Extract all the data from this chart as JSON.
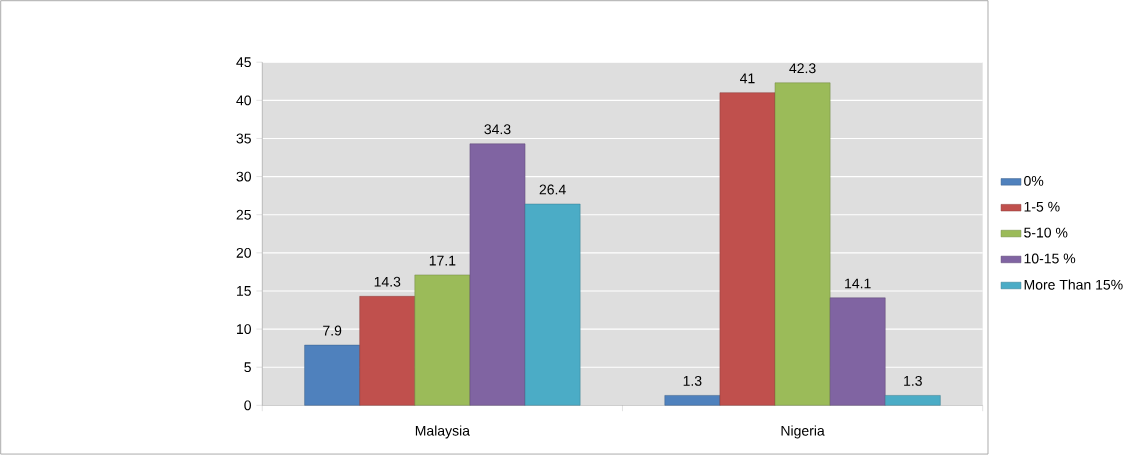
{
  "chart_data": {
    "type": "bar",
    "categories": [
      "Malaysia",
      "Nigeria"
    ],
    "series": [
      {
        "name": "0%",
        "color": "#4f81bd",
        "values": [
          7.9,
          1.3
        ]
      },
      {
        "name": "1-5 %",
        "color": "#c0504d",
        "values": [
          14.3,
          41
        ]
      },
      {
        "name": "5-10 %",
        "color": "#9bbb59",
        "values": [
          17.1,
          42.3
        ]
      },
      {
        "name": "10-15 %",
        "color": "#8064a2",
        "values": [
          34.3,
          14.1
        ]
      },
      {
        "name": "More Than 15%",
        "color": "#4bacc6",
        "values": [
          26.4,
          1.3
        ]
      }
    ],
    "ylim": [
      0,
      45
    ],
    "yticks": [
      0,
      5,
      10,
      15,
      20,
      25,
      30,
      35,
      40,
      45
    ],
    "grid": "y",
    "legend": "right",
    "data_labels": true
  }
}
